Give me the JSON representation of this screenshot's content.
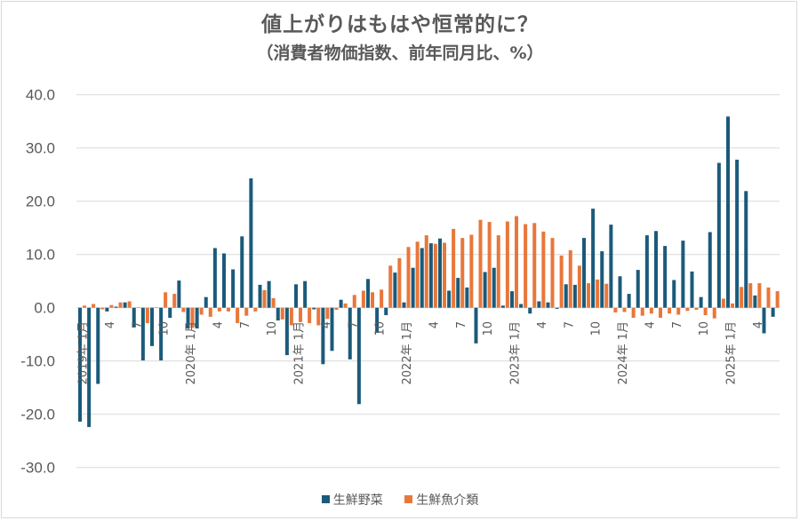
{
  "chart_data": {
    "type": "bar",
    "title": "値上がりはもはや恒常的に？",
    "subtitle": "（消費者物価指数、前年同月比、%）",
    "xlabel": "",
    "ylabel": "",
    "ylim": [
      -30,
      40
    ],
    "yticks": [
      "40.0",
      "30.0",
      "20.0",
      "10.0",
      "0.0",
      "-10.0",
      "-20.0",
      "-30.0"
    ],
    "ytick_values": [
      40,
      30,
      20,
      10,
      0,
      -10,
      -20,
      -30
    ],
    "grid": true,
    "legend_position": "bottom",
    "start": "2019-01",
    "end": "2025-06",
    "x_tick_labels": [
      {
        "month_index": 0,
        "label": "2019年 1月"
      },
      {
        "month_index": 3,
        "label": "4"
      },
      {
        "month_index": 6,
        "label": "7"
      },
      {
        "month_index": 9,
        "label": "10"
      },
      {
        "month_index": 12,
        "label": "2020年 1月"
      },
      {
        "month_index": 15,
        "label": "4"
      },
      {
        "month_index": 18,
        "label": "7"
      },
      {
        "month_index": 21,
        "label": "10"
      },
      {
        "month_index": 24,
        "label": "2021年 1月"
      },
      {
        "month_index": 27,
        "label": "4"
      },
      {
        "month_index": 30,
        "label": "7"
      },
      {
        "month_index": 33,
        "label": "10"
      },
      {
        "month_index": 36,
        "label": "2022年 1月"
      },
      {
        "month_index": 39,
        "label": "4"
      },
      {
        "month_index": 42,
        "label": "7"
      },
      {
        "month_index": 45,
        "label": "10"
      },
      {
        "month_index": 48,
        "label": "2023年 1月"
      },
      {
        "month_index": 51,
        "label": "4"
      },
      {
        "month_index": 54,
        "label": "7"
      },
      {
        "month_index": 57,
        "label": "10"
      },
      {
        "month_index": 60,
        "label": "2024年 1月"
      },
      {
        "month_index": 63,
        "label": "4"
      },
      {
        "month_index": 66,
        "label": "7"
      },
      {
        "month_index": 69,
        "label": "10"
      },
      {
        "month_index": 72,
        "label": "2025年 1月"
      },
      {
        "month_index": 75,
        "label": "4"
      }
    ],
    "series": [
      {
        "name": "生鮮野菜",
        "color": "#1b5a7a",
        "values": [
          -21.4,
          -22.4,
          -14.3,
          -0.7,
          0.2,
          1.0,
          -3.7,
          -9.9,
          -7.2,
          -9.9,
          -1.9,
          5.1,
          -3.9,
          -3.9,
          2.0,
          11.2,
          10.2,
          7.2,
          13.4,
          24.3,
          4.3,
          5.0,
          -2.4,
          -8.9,
          4.4,
          5.0,
          -0.3,
          -10.6,
          -8.1,
          1.5,
          -9.7,
          -18.1,
          5.4,
          -4.7,
          -1.4,
          6.6,
          1.0,
          7.5,
          11.2,
          12.1,
          13.0,
          3.2,
          5.6,
          3.8,
          -6.7,
          6.7,
          7.5,
          0.4,
          3.1,
          0.7,
          -1.1,
          1.2,
          1.0,
          -0.2,
          4.4,
          4.3,
          13.1,
          18.6,
          10.6,
          15.6,
          5.9,
          2.6,
          7.1,
          13.6,
          14.4,
          11.6,
          5.2,
          12.6,
          6.8,
          2.0,
          14.2,
          27.2,
          35.9,
          27.8,
          21.9,
          2.3,
          -4.8,
          -1.7
        ]
      },
      {
        "name": "生鮮魚介類",
        "color": "#e8773a",
        "values": [
          0.4,
          0.7,
          -0.3,
          0.5,
          1.0,
          1.2,
          0.1,
          -2.9,
          0.1,
          2.9,
          2.6,
          -0.8,
          -3.8,
          -1.3,
          -1.7,
          -0.7,
          -0.7,
          -2.9,
          -1.5,
          -0.7,
          3.3,
          1.8,
          -2.2,
          -3.3,
          -2.7,
          -2.9,
          -3.3,
          -2.1,
          -0.4,
          0.8,
          2.4,
          3.2,
          2.9,
          3.4,
          7.9,
          9.3,
          11.4,
          12.4,
          13.6,
          12.0,
          12.2,
          14.8,
          13.1,
          13.7,
          16.5,
          16.1,
          13.6,
          16.2,
          17.2,
          15.7,
          15.9,
          14.3,
          13.1,
          9.8,
          10.8,
          7.9,
          4.6,
          5.3,
          4.5,
          -0.9,
          -0.8,
          -1.9,
          -1.5,
          -1.1,
          -1.9,
          -1.1,
          -1.3,
          -0.6,
          -0.4,
          -1.4,
          -2.0,
          1.7,
          0.8,
          3.9,
          4.6,
          4.6,
          3.8,
          3.1
        ]
      }
    ]
  },
  "colors": {
    "text": "#595959",
    "grid": "#d9d9d9"
  }
}
